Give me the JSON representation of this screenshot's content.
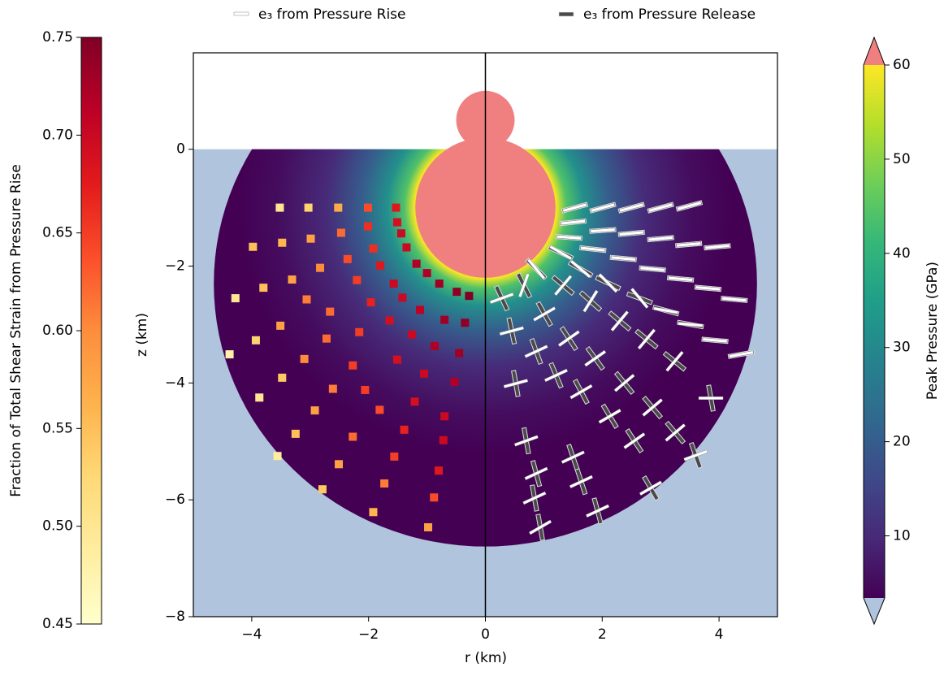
{
  "chart_data": {
    "type": "scatter",
    "xlabel": "r (km)",
    "ylabel": "z (km)",
    "xlim": [
      -5,
      5
    ],
    "ylim": [
      -8,
      1.65
    ],
    "xticks": [
      {
        "value": -4,
        "label": "−4"
      },
      {
        "value": -2,
        "label": "−2"
      },
      0,
      2,
      4
    ],
    "yticks": [
      0,
      {
        "value": -2,
        "label": "−2"
      },
      {
        "value": -4,
        "label": "−4"
      },
      {
        "value": -6,
        "label": "−6"
      },
      {
        "value": -8,
        "label": "−8"
      }
    ],
    "shear_points": {
      "x": [
        -3.52,
        -3.03,
        -2.52,
        -2.01,
        -1.53,
        -2.01,
        -1.51,
        -3.98,
        -3.48,
        -2.99,
        -2.47,
        -1.44,
        -1.92,
        -1.35,
        -2.83,
        -2.36,
        -1.8,
        -1.18,
        -3.8,
        -3.31,
        -2.2,
        -1.57,
        -1.0,
        -0.79,
        -4.28,
        -3.06,
        -1.96,
        -1.42,
        -0.49,
        -0.28,
        -3.51,
        -2.66,
        -1.64,
        -1.12,
        -0.7,
        -0.35,
        -3.93,
        -2.72,
        -2.16,
        -1.26,
        -0.87,
        -0.45,
        -4.38,
        -3.1,
        -2.27,
        -1.51,
        -3.48,
        -2.61,
        -1.05,
        -0.53,
        -3.87,
        -2.06,
        -1.21,
        -2.92,
        -1.81,
        -0.7,
        -3.25,
        -2.27,
        -1.39,
        -0.72,
        -3.56,
        -2.51,
        -1.56,
        -0.8,
        -2.79,
        -1.73,
        -0.88,
        -1.92,
        -0.98
      ],
      "y": [
        -1.0,
        -1.0,
        -1.0,
        -1.0,
        -1.0,
        -1.32,
        -1.25,
        -1.67,
        -1.6,
        -1.53,
        -1.43,
        -1.44,
        -1.7,
        -1.68,
        -2.03,
        -1.88,
        -1.99,
        -1.96,
        -2.37,
        -2.23,
        -2.24,
        -2.3,
        -2.12,
        -2.3,
        -2.55,
        -2.57,
        -2.62,
        -2.54,
        -2.44,
        -2.51,
        -3.02,
        -2.78,
        -2.93,
        -2.75,
        -2.92,
        -2.97,
        -3.27,
        -3.24,
        -3.13,
        -3.17,
        -3.37,
        -3.49,
        -3.51,
        -3.59,
        -3.7,
        -3.6,
        -3.91,
        -4.1,
        -3.84,
        -3.98,
        -4.25,
        -4.12,
        -4.32,
        -4.47,
        -4.46,
        -4.57,
        -4.87,
        -4.92,
        -4.8,
        -4.98,
        -5.25,
        -5.39,
        -5.26,
        -5.5,
        -5.82,
        -5.72,
        -5.96,
        -6.21,
        -6.47
      ],
      "values": [
        0.5,
        0.53,
        0.57,
        0.64,
        0.68,
        0.66,
        0.69,
        0.55,
        0.56,
        0.58,
        0.62,
        0.7,
        0.66,
        0.7,
        0.6,
        0.64,
        0.68,
        0.72,
        0.55,
        0.58,
        0.65,
        0.7,
        0.72,
        0.73,
        0.5,
        0.61,
        0.67,
        0.7,
        0.74,
        0.75,
        0.58,
        0.62,
        0.69,
        0.71,
        0.73,
        0.74,
        0.53,
        0.62,
        0.65,
        0.7,
        0.72,
        0.73,
        0.48,
        0.6,
        0.65,
        0.69,
        0.54,
        0.61,
        0.7,
        0.72,
        0.5,
        0.65,
        0.69,
        0.58,
        0.64,
        0.7,
        0.55,
        0.62,
        0.67,
        0.7,
        0.49,
        0.58,
        0.65,
        0.68,
        0.54,
        0.61,
        0.64,
        0.56,
        0.58
      ]
    },
    "strain_axes": {
      "x": [
        1.53,
        2.01,
        2.5,
        3.0,
        3.49,
        1.5,
        2.01,
        2.5,
        3.0,
        3.48,
        3.97,
        1.43,
        1.84,
        2.36,
        2.86,
        3.34,
        3.81,
        4.26,
        1.29,
        1.63,
        2.1,
        2.64,
        3.09,
        3.51,
        3.93,
        4.38,
        0.87,
        1.33,
        1.8,
        2.3,
        2.76,
        3.24,
        3.86,
        0.66,
        1.01,
        1.43,
        1.88,
        2.38,
        2.86,
        3.25,
        3.6,
        0.28,
        0.45,
        0.87,
        1.21,
        1.64,
        2.13,
        2.55,
        2.83,
        0.52,
        0.7,
        0.87,
        1.5,
        1.64,
        0.94,
        1.92,
        0.84
      ],
      "y": [
        -1.0,
        -1.0,
        -1.0,
        -1.0,
        -0.97,
        -1.25,
        -1.39,
        -1.44,
        -1.53,
        -1.63,
        -1.67,
        -1.51,
        -1.71,
        -1.87,
        -2.05,
        -2.22,
        -2.38,
        -2.57,
        -1.77,
        -2.05,
        -2.29,
        -2.55,
        -2.76,
        -3.0,
        -3.27,
        -3.51,
        -2.05,
        -2.33,
        -2.6,
        -2.94,
        -3.25,
        -3.63,
        -4.26,
        -2.33,
        -2.82,
        -3.24,
        -3.58,
        -4.0,
        -4.42,
        -4.85,
        -5.24,
        -2.55,
        -3.11,
        -3.46,
        -3.87,
        -4.15,
        -4.57,
        -4.99,
        -5.8,
        -4.01,
        -4.99,
        -5.55,
        -5.27,
        -5.69,
        -6.47,
        -6.19,
        -5.97
      ],
      "series": [
        {
          "name": "e₃ from Pressure Release",
          "color": "#4a4a4a",
          "angles": [
            -15,
            -15,
            -15,
            -15,
            -15,
            -6,
            -4,
            -5,
            -5,
            -5,
            -5,
            4,
            6,
            5,
            5,
            5,
            5,
            5,
            25,
            30,
            25,
            20,
            15,
            10,
            5,
            -10,
            45,
            40,
            42,
            40,
            39,
            39,
            80,
            63,
            61,
            57,
            54,
            51,
            50,
            50,
            70,
            65,
            78,
            70,
            67,
            62,
            59,
            57,
            60,
            80,
            80,
            75,
            71,
            72,
            80,
            75,
            80
          ]
        },
        {
          "name": "e₃ from Pressure Rise",
          "color": "#ffffff",
          "angles": [
            -15,
            -15,
            -15,
            -15,
            -15,
            -6,
            -4,
            -5,
            -5,
            -5,
            -5,
            4,
            6,
            5,
            5,
            5,
            5,
            5,
            30,
            40,
            45,
            50,
            10,
            5,
            5,
            -10,
            50,
            -50,
            -58,
            -50,
            -50,
            -50,
            0,
            -70,
            -30,
            -35,
            -35,
            -40,
            -40,
            -40,
            -20,
            -20,
            -15,
            -25,
            -25,
            -30,
            -30,
            -35,
            -30,
            -15,
            -20,
            -25,
            -25,
            -25,
            -30,
            -25,
            -25
          ]
        }
      ]
    },
    "colorbars": [
      {
        "label": "Fraction of Total Shear Strain from Pressure Rise",
        "cmap": "YlOrRd",
        "lim": [
          0.45,
          0.75
        ],
        "ticks": [
          0.45,
          {
            "value": 0.5,
            "label": "0.50"
          },
          0.55,
          {
            "value": 0.6,
            "label": "0.60"
          },
          0.65,
          {
            "value": 0.7,
            "label": "0.70"
          },
          0.75
        ]
      },
      {
        "label": "Peak Pressure (GPa)",
        "cmap": "viridis",
        "lim": [
          3.4,
          60
        ],
        "ticks": [
          10,
          20,
          30,
          40,
          50,
          60
        ],
        "over_color": "#f08080",
        "under_color": "#b0c4de"
      }
    ]
  }
}
